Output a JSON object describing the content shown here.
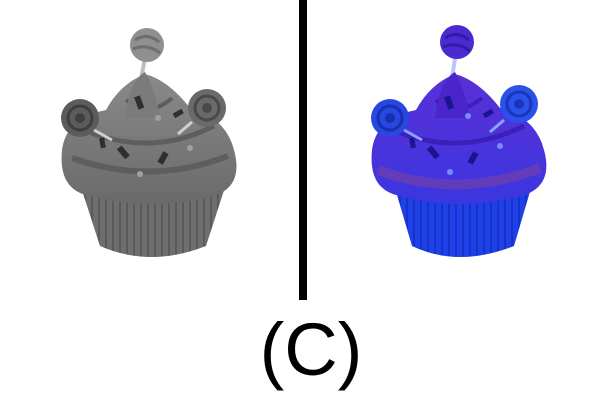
{
  "caption": "(C)",
  "colors": {
    "background": "#ffffff",
    "divider": "#000000",
    "caption": "#000000",
    "grayscale_base": "#7a7a7a",
    "grayscale_dark": "#4a4a4a",
    "grayscale_light": "#a9a9a9",
    "tinted_top": "#5b2fd6",
    "tinted_bottom": "#1f3fe8",
    "tinted_band": "#6a3fb0"
  },
  "panels": [
    {
      "name": "grayscale-cupcake",
      "style": "grayscale"
    },
    {
      "name": "tinted-cupcake",
      "style": "blue-purple"
    }
  ]
}
